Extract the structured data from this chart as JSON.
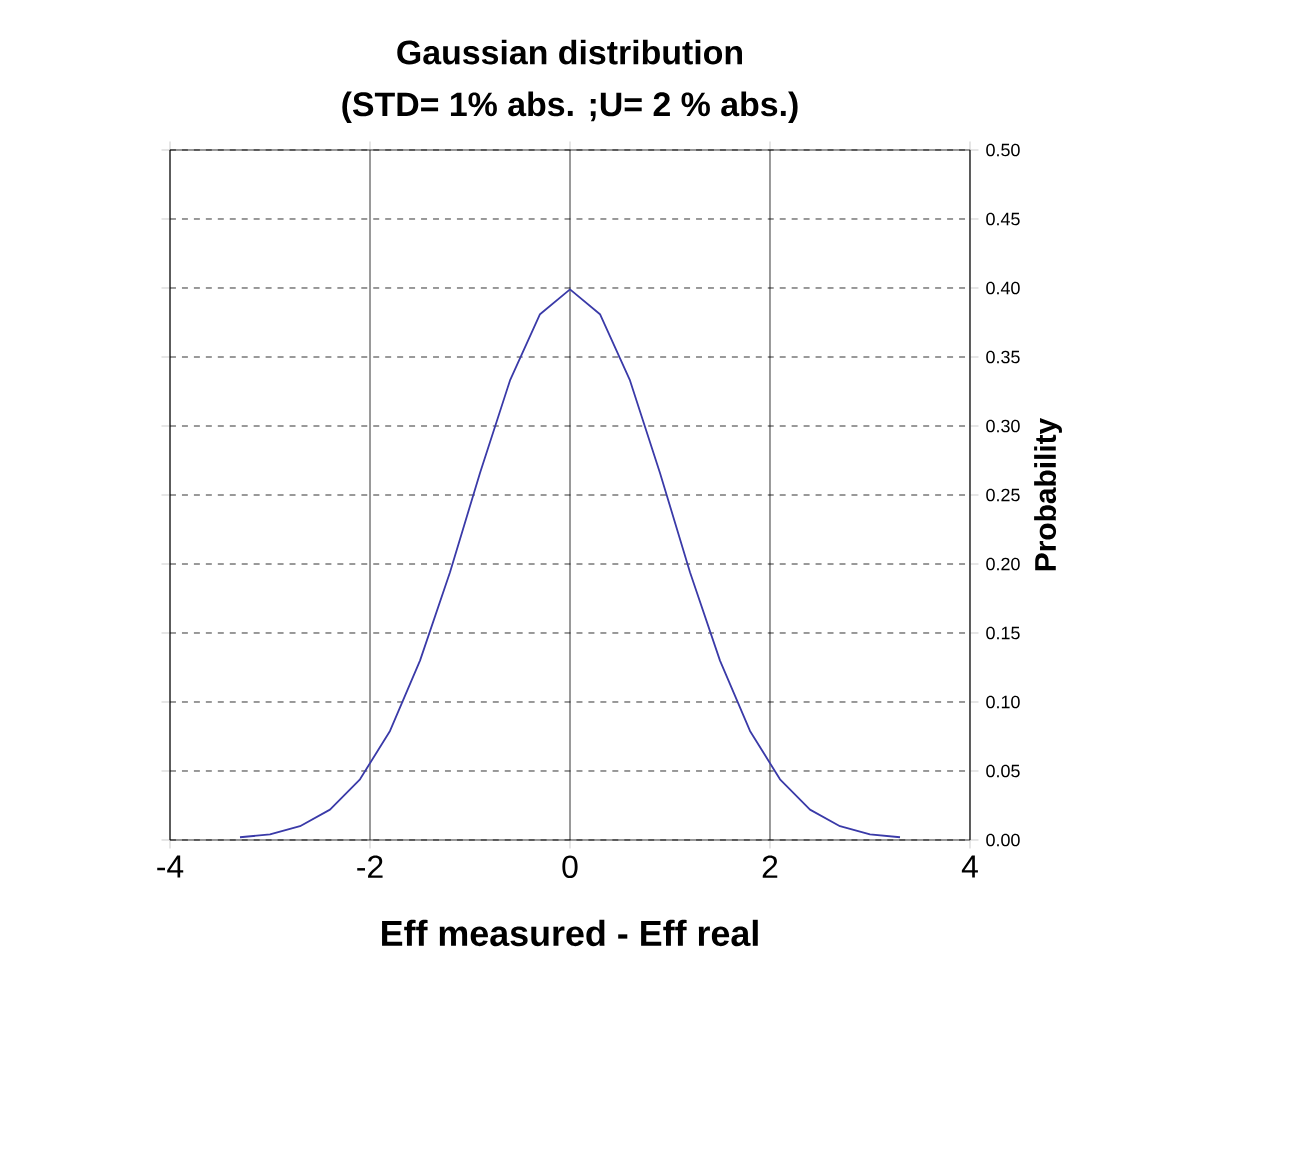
{
  "chart_data": {
    "type": "line",
    "title": "Gaussian distribution",
    "subtitle": "(STD= 1% abs. ;U= 2 % abs.)",
    "xlabel": "Eff measured - Eff real",
    "ylabel": "Probability",
    "x": [
      -3.3,
      -3.0,
      -2.7,
      -2.4,
      -2.1,
      -1.8,
      -1.5,
      -1.2,
      -0.9,
      -0.6,
      -0.3,
      0,
      0.3,
      0.6,
      0.9,
      1.2,
      1.5,
      1.8,
      2.1,
      2.4,
      2.7,
      3.0,
      3.3
    ],
    "series": [
      {
        "color": "#3a3aa8",
        "values": [
          0.002,
          0.004,
          0.01,
          0.022,
          0.044,
          0.079,
          0.13,
          0.194,
          0.266,
          0.333,
          0.381,
          0.399,
          0.381,
          0.333,
          0.266,
          0.194,
          0.13,
          0.079,
          0.044,
          0.022,
          0.01,
          0.004,
          0.002
        ]
      }
    ],
    "xlim": [
      -4,
      4
    ],
    "xticks": [
      -4,
      -2,
      0,
      2,
      4
    ],
    "ylim": [
      0,
      0.5
    ],
    "yticks": [
      {
        "value": 0,
        "label": "0.00"
      },
      {
        "value": 0.05,
        "label": "0.05"
      },
      {
        "value": 0.1,
        "label": "0.10"
      },
      {
        "value": 0.15,
        "label": "0.15"
      },
      {
        "value": 0.2,
        "label": "0.20"
      },
      {
        "value": 0.25,
        "label": "0.25"
      },
      {
        "value": 0.3,
        "label": "0.30"
      },
      {
        "value": 0.35,
        "label": "0.35"
      },
      {
        "value": 0.4,
        "label": "0.40"
      },
      {
        "value": 0.45,
        "label": "0.45"
      },
      {
        "value": 0.5,
        "label": "0.50"
      }
    ],
    "grid": true,
    "marker": "none",
    "line_style": "solid"
  }
}
